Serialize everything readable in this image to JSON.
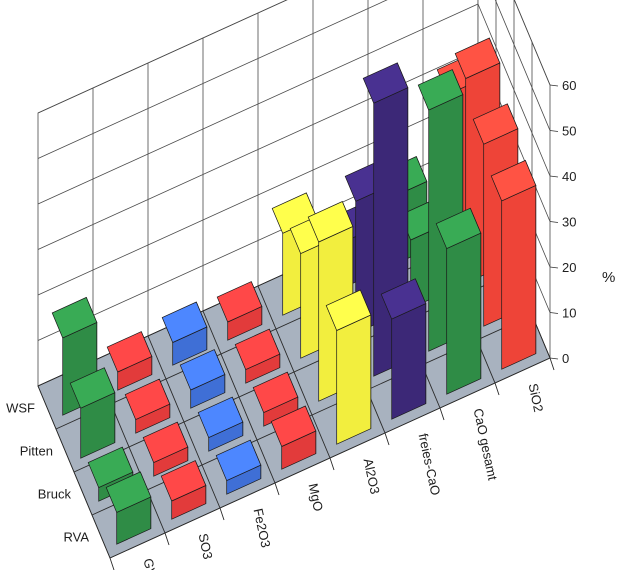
{
  "chart_data": {
    "type": "bar",
    "unit_label": "%",
    "zlim": [
      0,
      60
    ],
    "z_ticks": [
      "0",
      "10",
      "20",
      "30",
      "40",
      "50",
      "60"
    ],
    "categories": [
      "GV",
      "SO3",
      "Fe2O3",
      "MgO",
      "Al2O3",
      "freies-CaO",
      "CaO gesamt",
      "SiO2"
    ],
    "series": [
      {
        "name": "RVA",
        "values": [
          7,
          4,
          3,
          5,
          25,
          22,
          32,
          37
        ]
      },
      {
        "name": "Bruck",
        "values": [
          3,
          3,
          3,
          3,
          35,
          60,
          53,
          40
        ]
      },
      {
        "name": "Pitten",
        "values": [
          11,
          3,
          4,
          3,
          23,
          29,
          15,
          45
        ]
      },
      {
        "name": "WSF",
        "values": [
          17,
          4,
          5,
          4,
          18,
          10,
          15,
          32
        ]
      }
    ],
    "colors": {
      "GV": "#2f8c46",
      "SO3": "#e23b3b",
      "Fe2O3": "#3f6fd6",
      "MgO": "#e23b3b",
      "Al2O3": "#f2ee3e",
      "freies-CaO": "#3c2877",
      "CaO gesamt": "#2f8c46",
      "SiO2": "#ee4438"
    },
    "grid": true,
    "floor_color": "#a8b2bf"
  }
}
